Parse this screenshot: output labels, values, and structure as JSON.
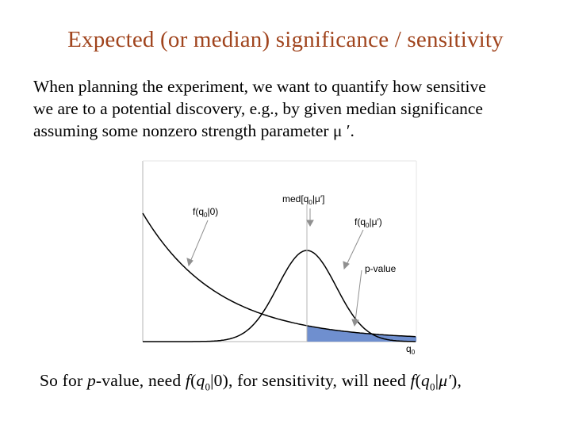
{
  "slide": {
    "title": "Expected (or median) significance / sensitivity",
    "intro_lines": [
      "When planning the experiment, we want to quantify how sensitive",
      "we are to a potential discovery, e.g., by given median significance",
      "assuming some nonzero strength parameter μ ′."
    ]
  },
  "figure": {
    "label_f0_prefix": "f(q",
    "label_f0_sub": "0",
    "label_f0_suffix": "|0)",
    "label_med_prefix": "med[q",
    "label_med_sub": "0",
    "label_med_suffix": "|μ′]",
    "label_fmu_prefix": "f(q",
    "label_fmu_sub": "0",
    "label_fmu_suffix": "|μ′)",
    "label_pvalue": "p-value",
    "label_q0": "q",
    "label_q0_sub": "0",
    "fill_color": "#6f8fcf"
  },
  "footer": {
    "t1": "So for ",
    "p": "p",
    "t2": "-value, need ",
    "f1": "f",
    "q1": "q",
    "sub1": "0",
    "t3": "|0), for sensitivity, will need ",
    "f2": "f",
    "q2": "q",
    "sub2": "0",
    "mu": "μ′",
    "t4": "),"
  }
}
